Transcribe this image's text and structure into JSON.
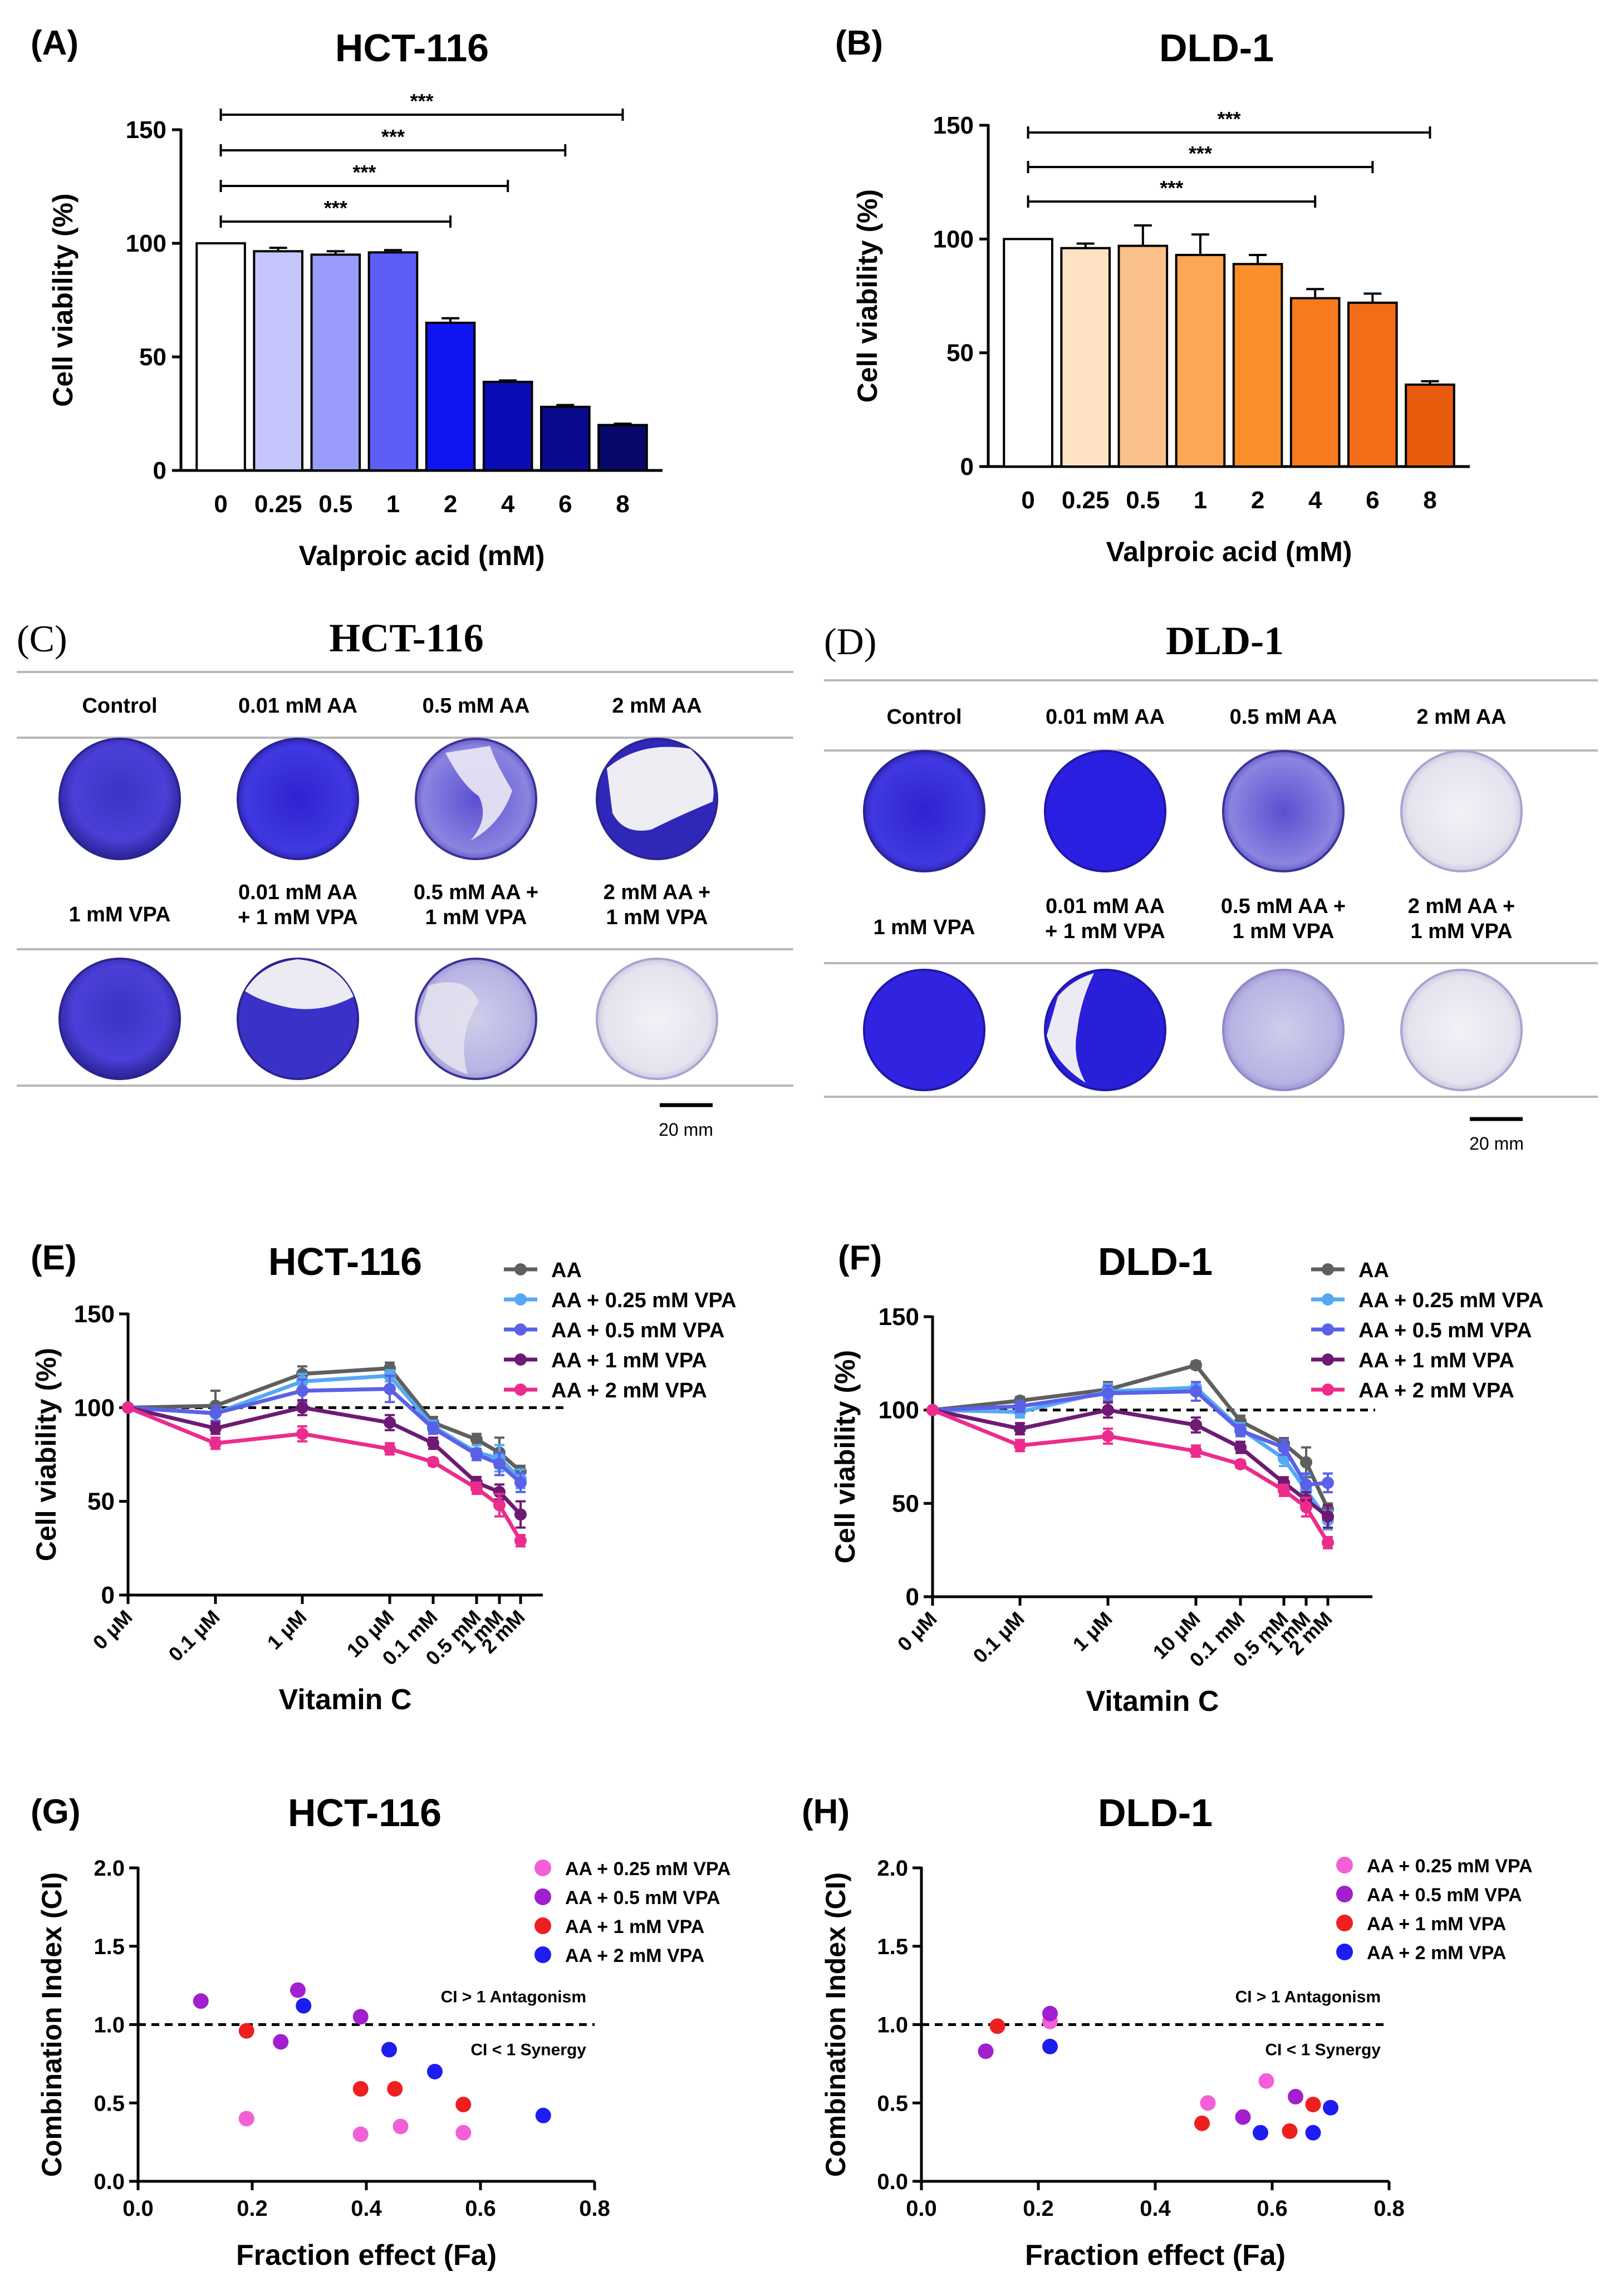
{
  "panels": {
    "A": {
      "letter": "(A)",
      "title": "HCT-116"
    },
    "B": {
      "letter": "(B)",
      "title": "DLD-1"
    },
    "C": {
      "letter": "(C)",
      "title": "HCT-116",
      "scale_label": "20 mm"
    },
    "D": {
      "letter": "(D)",
      "title": "DLD-1",
      "scale_label": "20 mm"
    },
    "E": {
      "letter": "(E)",
      "title": "HCT-116"
    },
    "F": {
      "letter": "(F)",
      "title": "DLD-1"
    },
    "G": {
      "letter": "(G)",
      "title": "HCT-116"
    },
    "H": {
      "letter": "(H)",
      "title": "DLD-1"
    }
  },
  "colony": {
    "headers_top": [
      "Control",
      "0.01 mM AA",
      "0.5 mM AA",
      "2 mM AA"
    ],
    "headers_bottom": [
      [
        "1 mM VPA"
      ],
      [
        "0.01 mM AA",
        "+ 1 mM VPA"
      ],
      [
        "0.5 mM AA +",
        "1 mM VPA"
      ],
      [
        "2 mM AA +",
        "1 mM VPA"
      ]
    ]
  },
  "colors": {
    "AA": "#5f5f5f",
    "AA_0.25": "#54a8f4",
    "AA_0.5": "#5a61e6",
    "AA_1": "#6e1a74",
    "AA_2": "#ec2c8c",
    "CI_0.25": "#f25fd6",
    "CI_0.5": "#a21fcf",
    "CI_1": "#ef1f1f",
    "CI_2": "#1d1df0"
  },
  "chart_data": [
    {
      "id": "A",
      "type": "bar",
      "title": "HCT-116",
      "xlabel": "Valproic acid (mM)",
      "ylabel": "Cell viability (%)",
      "categories": [
        "0",
        "0.25",
        "0.5",
        "1",
        "2",
        "4",
        "6",
        "8"
      ],
      "values": [
        100,
        96.5,
        95,
        96,
        65,
        39,
        28,
        20
      ],
      "errors": [
        0,
        1.5,
        1.5,
        1,
        2,
        0.6,
        0.8,
        0.6
      ],
      "ylim": [
        0,
        150
      ],
      "yticks": [
        0,
        50,
        100,
        150
      ],
      "bar_colors": [
        "#ffffff",
        "#c4c6fb",
        "#9a9cfb",
        "#5c5ef6",
        "#0e15f0",
        "#0c0cb4",
        "#0a0a8c",
        "#08086a"
      ],
      "significance": [
        {
          "from": 0,
          "to": 4,
          "label": "***"
        },
        {
          "from": 0,
          "to": 5,
          "label": "***"
        },
        {
          "from": 0,
          "to": 6,
          "label": "***"
        },
        {
          "from": 0,
          "to": 7,
          "label": "***"
        }
      ]
    },
    {
      "id": "B",
      "type": "bar",
      "title": "DLD-1",
      "xlabel": "Valproic acid (mM)",
      "ylabel": "Cell viability (%)",
      "categories": [
        "0",
        "0.25",
        "0.5",
        "1",
        "2",
        "4",
        "6",
        "8"
      ],
      "values": [
        100,
        96,
        97,
        93,
        89,
        74,
        72,
        36
      ],
      "errors": [
        0,
        2,
        9,
        9,
        4,
        4,
        4,
        1.5
      ],
      "ylim": [
        0,
        150
      ],
      "yticks": [
        0,
        50,
        100,
        150
      ],
      "bar_colors": [
        "#ffffff",
        "#fde2c4",
        "#fbc18a",
        "#fba755",
        "#f98f2a",
        "#f77a1e",
        "#f56c18",
        "#e85a0c"
      ],
      "significance": [
        {
          "from": 0,
          "to": 5,
          "label": "***"
        },
        {
          "from": 0,
          "to": 6,
          "label": "***"
        },
        {
          "from": 0,
          "to": 7,
          "label": "***"
        }
      ]
    },
    {
      "id": "E",
      "type": "line",
      "title": "HCT-116",
      "xlabel": "Vitamin C",
      "ylabel": "Cell viability (%)",
      "x": [
        "0 μM",
        "0.1 μM",
        "1 μM",
        "10 μM",
        "0.1 mM",
        "0.5 mM",
        "1 mM",
        "2 mM"
      ],
      "ylim": [
        0,
        150
      ],
      "yticks": [
        0,
        50,
        100,
        150
      ],
      "reference_y": 100,
      "series": [
        {
          "name": "AA",
          "values": [
            100,
            101,
            118,
            121,
            92,
            83,
            76,
            66
          ],
          "errors": [
            0,
            8,
            4,
            3,
            3,
            3,
            8,
            3
          ]
        },
        {
          "name": "AA + 0.25 mM VPA",
          "values": [
            100,
            97,
            114,
            117,
            90,
            76,
            73,
            62
          ],
          "errors": [
            0,
            4,
            4,
            3,
            3,
            4,
            7,
            5
          ]
        },
        {
          "name": "AA + 0.5 mM VPA",
          "values": [
            100,
            97,
            109,
            110,
            89,
            75,
            70,
            60
          ],
          "errors": [
            0,
            4,
            6,
            7,
            3,
            3,
            6,
            5
          ]
        },
        {
          "name": "AA + 1 mM VPA",
          "values": [
            100,
            89,
            100,
            92,
            81,
            60,
            55,
            43
          ],
          "errors": [
            0,
            3,
            4,
            4,
            3,
            3,
            4,
            7
          ]
        },
        {
          "name": "AA + 2 mM VPA",
          "values": [
            100,
            81,
            86,
            78,
            71,
            57,
            48,
            29
          ],
          "errors": [
            0,
            3,
            4,
            3,
            2,
            3,
            6,
            3
          ]
        }
      ]
    },
    {
      "id": "F",
      "type": "line",
      "title": "DLD-1",
      "xlabel": "Vitamin C",
      "ylabel": "Cell viability (%)",
      "x": [
        "0 μM",
        "0.1 μM",
        "1 μM",
        "10 μM",
        "0.1 mM",
        "0.5 mM",
        "1 mM",
        "2 mM"
      ],
      "ylim": [
        0,
        150
      ],
      "yticks": [
        0,
        50,
        100,
        150
      ],
      "reference_y": 100,
      "series": [
        {
          "name": "AA",
          "values": [
            100,
            105,
            111,
            124,
            94,
            82,
            72,
            47
          ],
          "errors": [
            0,
            2,
            4,
            2,
            3,
            3,
            8,
            3
          ]
        },
        {
          "name": "AA + 0.25 mM VPA",
          "values": [
            100,
            99,
            110,
            112,
            90,
            74,
            57,
            41
          ],
          "errors": [
            0,
            3,
            4,
            3,
            3,
            4,
            8,
            5
          ]
        },
        {
          "name": "AA + 0.5 mM VPA",
          "values": [
            100,
            102,
            109,
            110,
            89,
            80,
            60,
            61
          ],
          "errors": [
            0,
            3,
            4,
            5,
            3,
            4,
            6,
            5
          ]
        },
        {
          "name": "AA + 1 mM VPA",
          "values": [
            100,
            90,
            100,
            92,
            80,
            61,
            52,
            43
          ],
          "errors": [
            0,
            3,
            4,
            4,
            3,
            3,
            4,
            6
          ]
        },
        {
          "name": "AA + 2 mM VPA",
          "values": [
            100,
            81,
            86,
            78,
            71,
            57,
            48,
            29
          ],
          "errors": [
            0,
            3,
            4,
            3,
            2,
            3,
            5,
            3
          ]
        }
      ]
    },
    {
      "id": "G",
      "type": "scatter",
      "title": "HCT-116",
      "xlabel": "Fraction effect (Fa)",
      "ylabel": "Combination Index (CI)",
      "xlim": [
        0.0,
        0.8
      ],
      "ylim": [
        0.0,
        2.0
      ],
      "xticks": [
        "0.0",
        "0.2",
        "0.4",
        "0.6",
        "0.8"
      ],
      "yticks": [
        "0.0",
        "0.5",
        "1.0",
        "1.5",
        "2.0"
      ],
      "reference_y": 1.0,
      "annotations": [
        "CI > 1 Antagonism",
        "CI < 1 Synergy"
      ],
      "series": [
        {
          "name": "AA + 0.25 mM VPA",
          "points": [
            [
              0.19,
              0.4
            ],
            [
              0.39,
              0.3
            ],
            [
              0.46,
              0.35
            ],
            [
              0.57,
              0.31
            ]
          ]
        },
        {
          "name": "AA + 0.5 mM VPA",
          "points": [
            [
              0.11,
              1.15
            ],
            [
              0.25,
              0.89
            ],
            [
              0.28,
              1.22
            ],
            [
              0.39,
              1.05
            ]
          ]
        },
        {
          "name": "AA + 1 mM VPA",
          "points": [
            [
              0.19,
              0.96
            ],
            [
              0.39,
              0.59
            ],
            [
              0.45,
              0.59
            ],
            [
              0.57,
              0.49
            ]
          ]
        },
        {
          "name": "AA + 2 mM VPA",
          "points": [
            [
              0.29,
              1.12
            ],
            [
              0.44,
              0.84
            ],
            [
              0.52,
              0.7
            ],
            [
              0.71,
              0.42
            ]
          ]
        }
      ]
    },
    {
      "id": "H",
      "type": "scatter",
      "title": "DLD-1",
      "xlabel": "Fraction effect (Fa)",
      "ylabel": "Combination Index (CI)",
      "xlim": [
        0.0,
        0.8
      ],
      "ylim": [
        0.0,
        2.0
      ],
      "xticks": [
        "0.0",
        "0.2",
        "0.4",
        "0.6",
        "0.8"
      ],
      "yticks": [
        "0.0",
        "0.5",
        "1.0",
        "1.5",
        "2.0"
      ],
      "reference_y": 1.0,
      "annotations": [
        "CI > 1 Antagonism",
        "CI < 1 Synergy"
      ],
      "series": [
        {
          "name": "AA + 0.25 mM VPA",
          "points": [
            [
              0.22,
              1.02
            ],
            [
              0.49,
              0.5
            ],
            [
              0.59,
              0.64
            ]
          ]
        },
        {
          "name": "AA + 0.5 mM VPA",
          "points": [
            [
              0.11,
              0.83
            ],
            [
              0.22,
              1.07
            ],
            [
              0.55,
              0.41
            ],
            [
              0.64,
              0.54
            ]
          ]
        },
        {
          "name": "AA + 1 mM VPA",
          "points": [
            [
              0.13,
              0.99
            ],
            [
              0.48,
              0.37
            ],
            [
              0.63,
              0.32
            ],
            [
              0.67,
              0.49
            ]
          ]
        },
        {
          "name": "AA + 2 mM VPA",
          "points": [
            [
              0.22,
              0.86
            ],
            [
              0.58,
              0.31
            ],
            [
              0.67,
              0.31
            ],
            [
              0.7,
              0.47
            ]
          ]
        }
      ]
    }
  ]
}
